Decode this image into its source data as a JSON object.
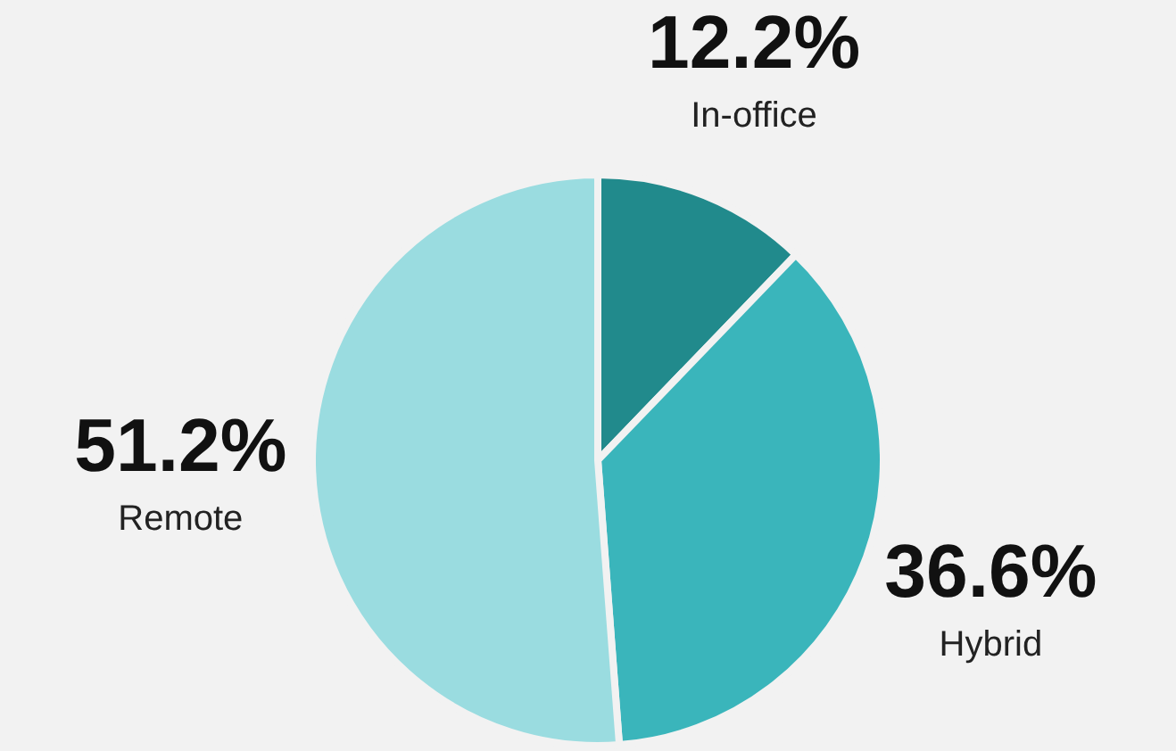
{
  "chart_data": {
    "type": "pie",
    "categories": [
      "In-office",
      "Hybrid",
      "Remote"
    ],
    "values": [
      12.2,
      36.6,
      51.2
    ],
    "colors": [
      "#218a8c",
      "#3ab5bb",
      "#9adce0"
    ],
    "value_labels": [
      "12.2%",
      "36.6%",
      "51.2%"
    ]
  }
}
